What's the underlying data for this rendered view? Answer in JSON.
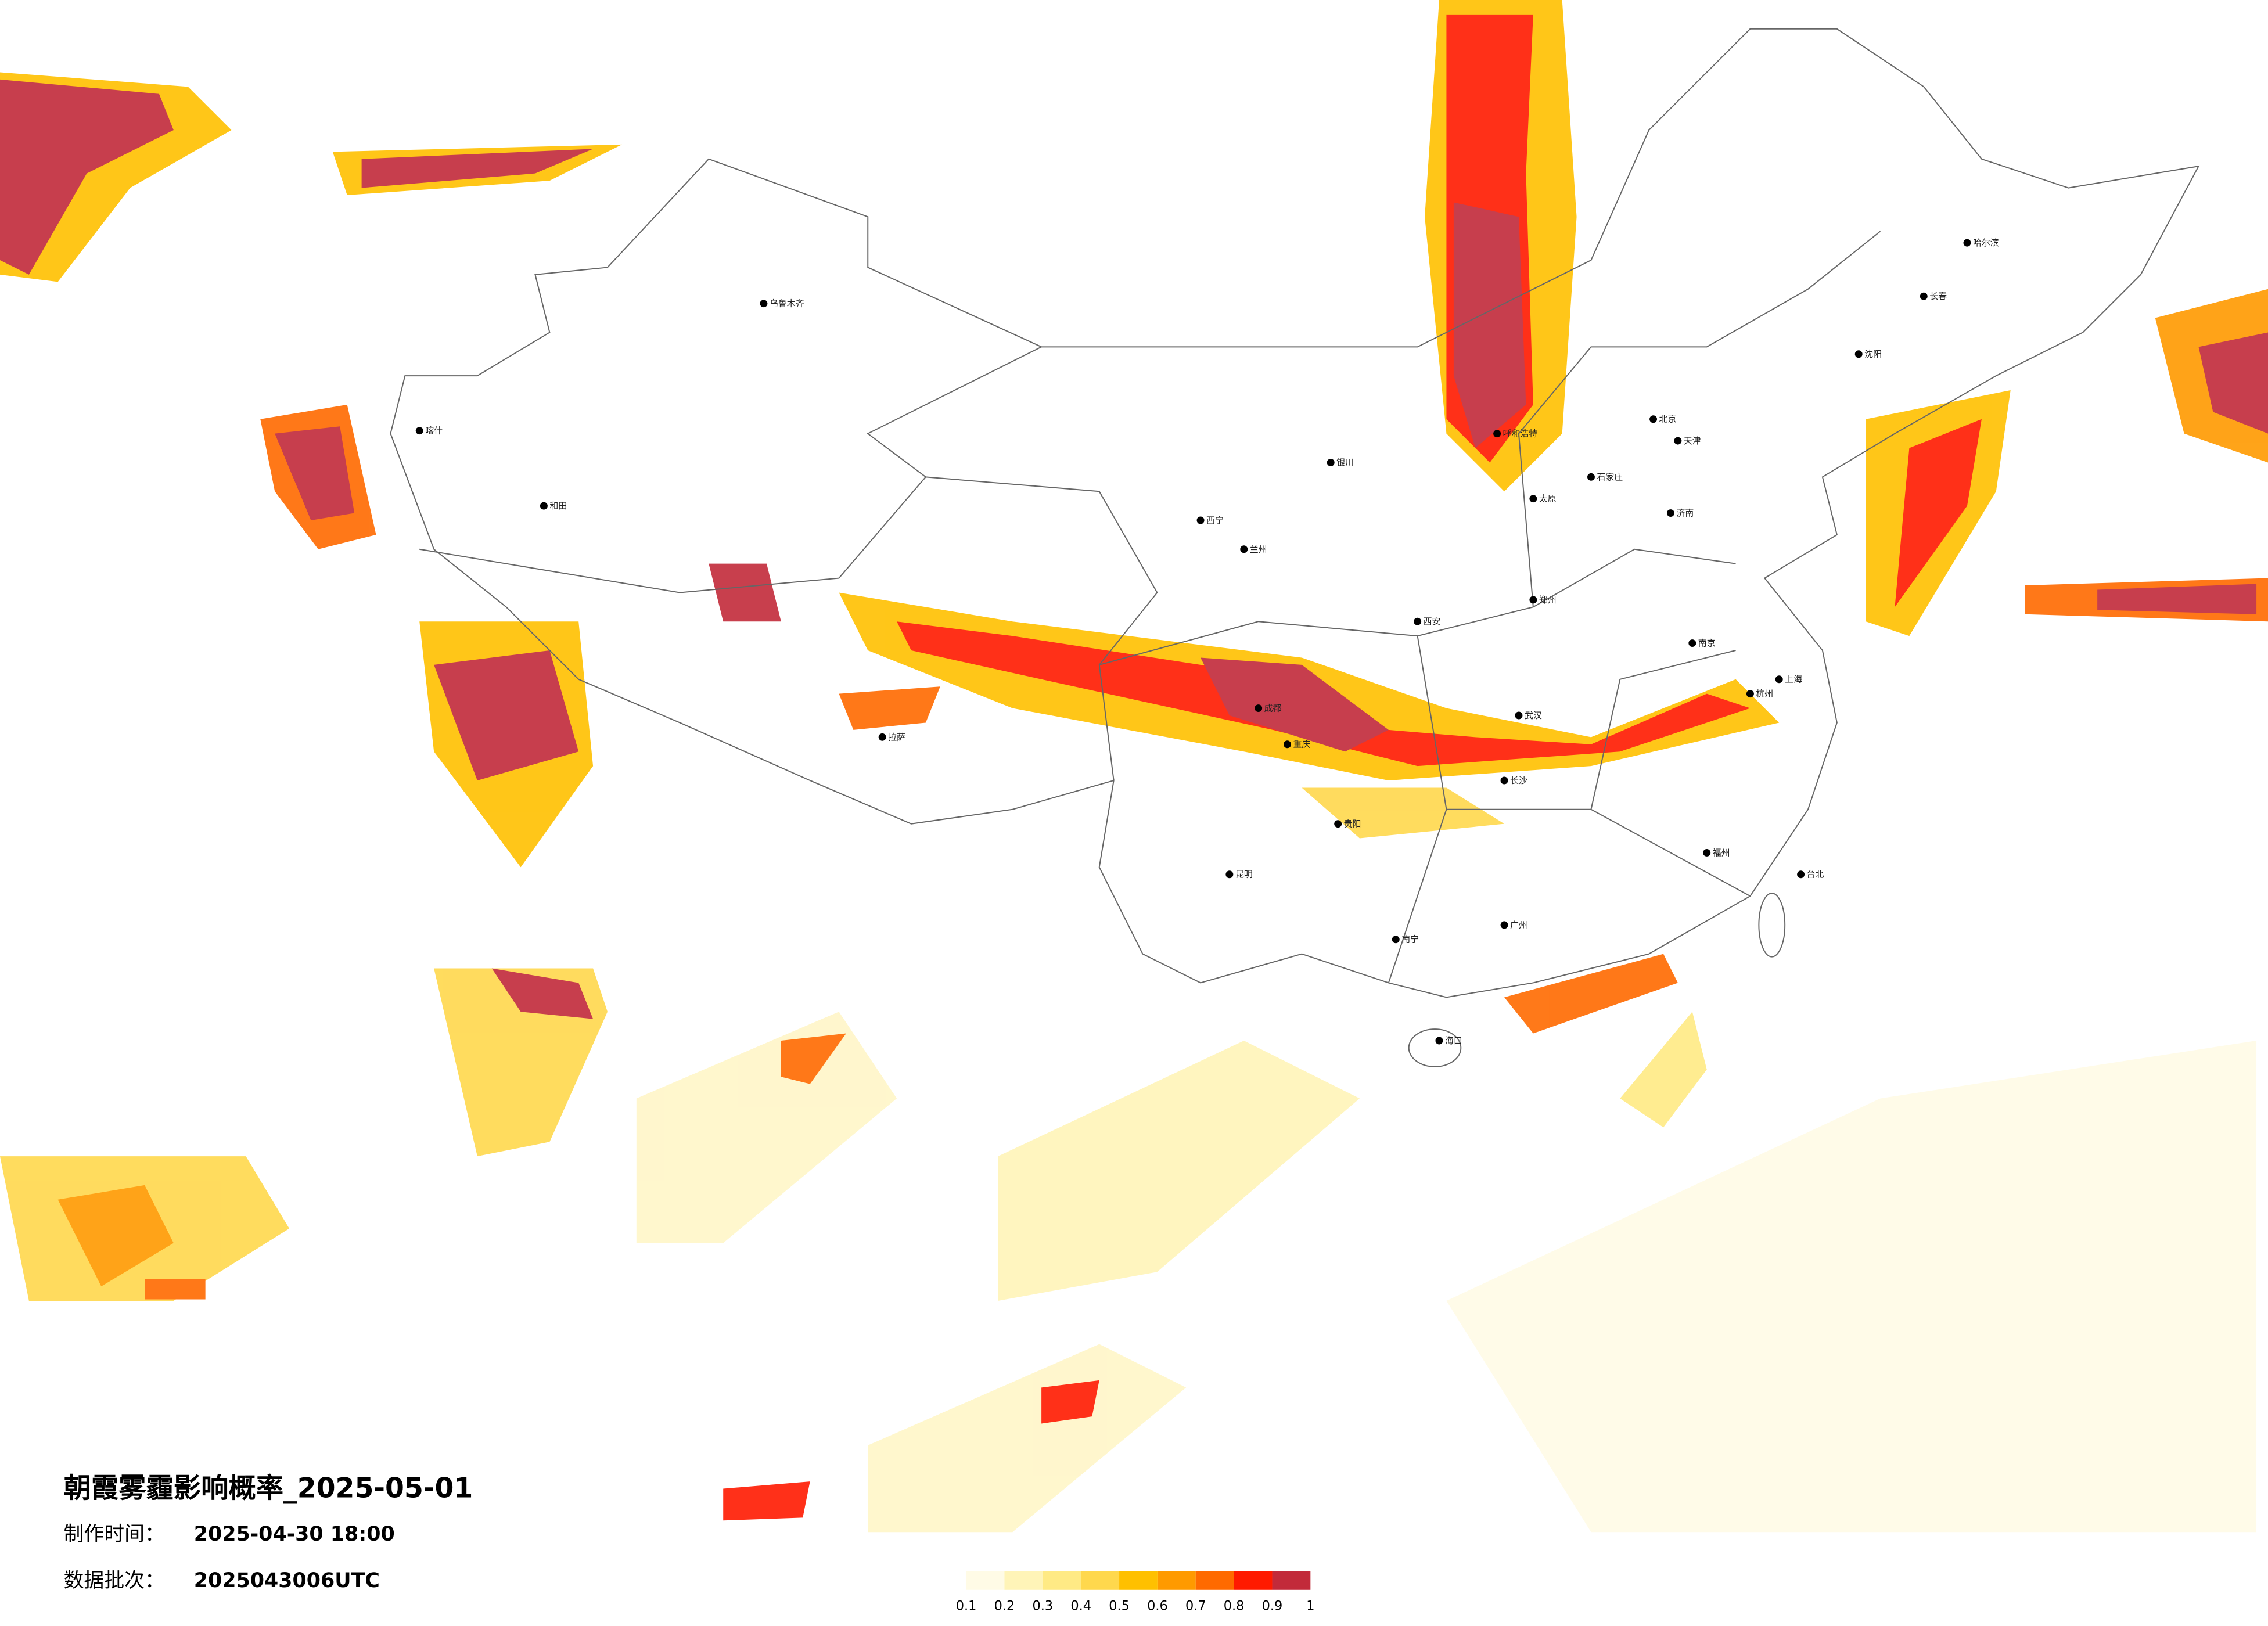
{
  "header": {
    "title": "朝霞雾霾影响概率_2025-05-01",
    "made_label": "制作时间：",
    "made_time": "2025-04-30 18:00",
    "batch_label": "数据批次：",
    "batch": "2025043006UTC"
  },
  "colorbar": {
    "ticks": [
      0.1,
      0.2,
      0.3,
      0.4,
      0.5,
      0.6,
      0.7,
      0.8,
      0.9,
      1
    ],
    "colors": [
      "#fffbe6",
      "#fff4b8",
      "#ffea85",
      "#ffd84d",
      "#ffc000",
      "#ff9a00",
      "#ff6a00",
      "#ff1a00",
      "#c22a3a"
    ]
  },
  "cities": [
    "北京",
    "天津",
    "上海",
    "重庆",
    "哈尔滨",
    "长春",
    "沈阳",
    "乌鲁木齐",
    "拉萨",
    "西宁",
    "兰州",
    "成都",
    "昆明",
    "贵阳",
    "南宁",
    "广州",
    "福州",
    "杭州",
    "南京",
    "武汉",
    "长沙",
    "郑州",
    "济南",
    "石家庄",
    "太原",
    "西安",
    "银川",
    "呼和浩特",
    "海口",
    "台北",
    "和田",
    "喀什"
  ]
}
